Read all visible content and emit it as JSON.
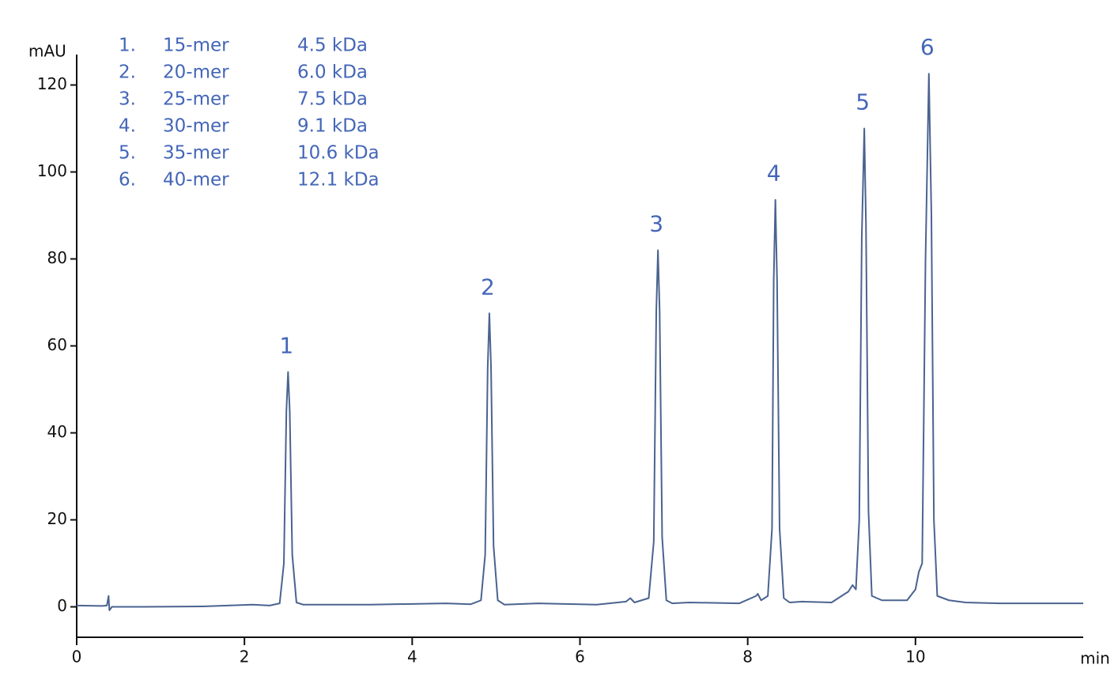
{
  "chart_data": {
    "type": "line",
    "y_label": "mAU",
    "x_label": "min",
    "xlim": [
      0,
      12
    ],
    "ylim": [
      -7,
      127
    ],
    "xticks": [
      0,
      2,
      4,
      6,
      8,
      10
    ],
    "yticks": [
      0,
      20,
      40,
      60,
      80,
      100,
      120
    ],
    "legend_rows": [
      [
        "1.",
        "15-mer",
        "4.5 kDa"
      ],
      [
        "2.",
        "20-mer",
        "6.0 kDa"
      ],
      [
        "3.",
        "25-mer",
        "7.5 kDa"
      ],
      [
        "4.",
        "30-mer",
        "9.1 kDa"
      ],
      [
        "5.",
        "35-mer",
        "10.6 kDa"
      ],
      [
        "6.",
        "40-mer",
        "12.1 kDa"
      ]
    ],
    "annotations": [
      {
        "text": "1",
        "x": 2.52,
        "y": 54
      },
      {
        "text": "2",
        "x": 4.92,
        "y": 67.5
      },
      {
        "text": "3",
        "x": 6.93,
        "y": 82
      },
      {
        "text": "4",
        "x": 8.33,
        "y": 93.6
      },
      {
        "text": "5",
        "x": 9.39,
        "y": 110
      },
      {
        "text": "6",
        "x": 10.16,
        "y": 122.6
      }
    ],
    "series": [
      {
        "color": "#4a6390",
        "x": [
          0,
          0.3,
          0.36,
          0.38,
          0.39,
          0.42,
          0.8,
          1.5,
          2.1,
          2.3,
          2.42,
          2.47,
          2.5,
          2.52,
          2.54,
          2.57,
          2.62,
          2.7,
          3.5,
          4.4,
          4.7,
          4.82,
          4.87,
          4.9,
          4.92,
          4.94,
          4.97,
          5.02,
          5.1,
          5.5,
          6.2,
          6.55,
          6.6,
          6.65,
          6.82,
          6.88,
          6.91,
          6.93,
          6.95,
          6.98,
          7.03,
          7.1,
          7.3,
          7.9,
          8.1,
          8.12,
          8.16,
          8.24,
          8.29,
          8.31,
          8.33,
          8.35,
          8.38,
          8.43,
          8.5,
          8.65,
          9.0,
          9.2,
          9.25,
          9.29,
          9.33,
          9.36,
          9.39,
          9.41,
          9.44,
          9.48,
          9.6,
          9.9,
          10.0,
          10.04,
          10.08,
          10.12,
          10.16,
          10.19,
          10.22,
          10.26,
          10.4,
          10.6,
          11.0,
          12
        ],
        "values": [
          0.3,
          0.2,
          0.3,
          2.5,
          -0.8,
          0,
          0,
          0.1,
          0.5,
          0.3,
          0.8,
          10,
          45,
          54,
          45,
          12,
          1,
          0.5,
          0.5,
          0.8,
          0.6,
          1.5,
          12,
          55,
          67.5,
          55,
          14,
          1.5,
          0.5,
          0.8,
          0.5,
          1.2,
          2,
          1,
          2,
          15,
          68,
          82,
          68,
          16,
          1.5,
          0.8,
          1,
          0.8,
          2.5,
          3,
          1.5,
          2.5,
          18,
          75,
          93.6,
          75,
          18,
          2,
          1,
          1.2,
          1,
          3.5,
          5,
          4,
          20,
          85,
          110,
          88,
          22,
          2.5,
          1.5,
          1.5,
          4,
          8,
          10,
          80,
          122.6,
          90,
          20,
          2.5,
          1.5,
          1,
          0.8,
          0.8
        ]
      }
    ]
  }
}
